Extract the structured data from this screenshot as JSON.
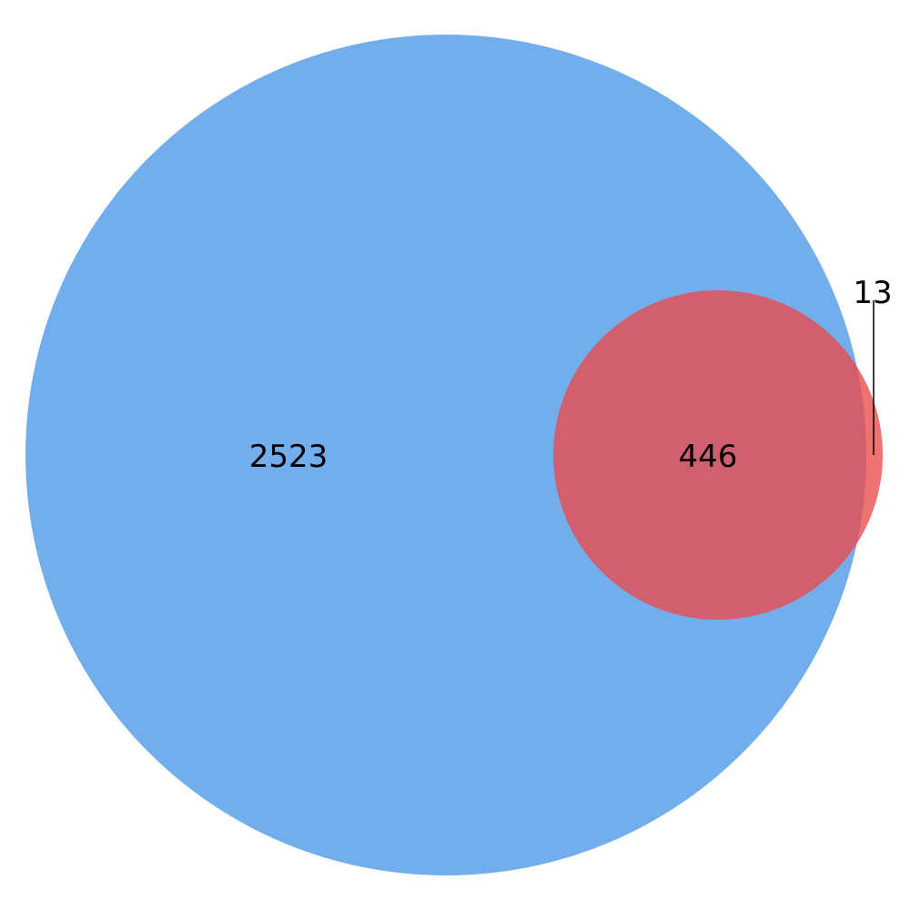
{
  "venn": {
    "type": "venn2",
    "regions": {
      "a_only": "2523",
      "intersection": "446",
      "b_only": "13"
    },
    "colors": {
      "set_a": "#72aeec",
      "set_b": "#ee7272",
      "overlap": "#d06070",
      "leader_line": "#000000"
    }
  }
}
